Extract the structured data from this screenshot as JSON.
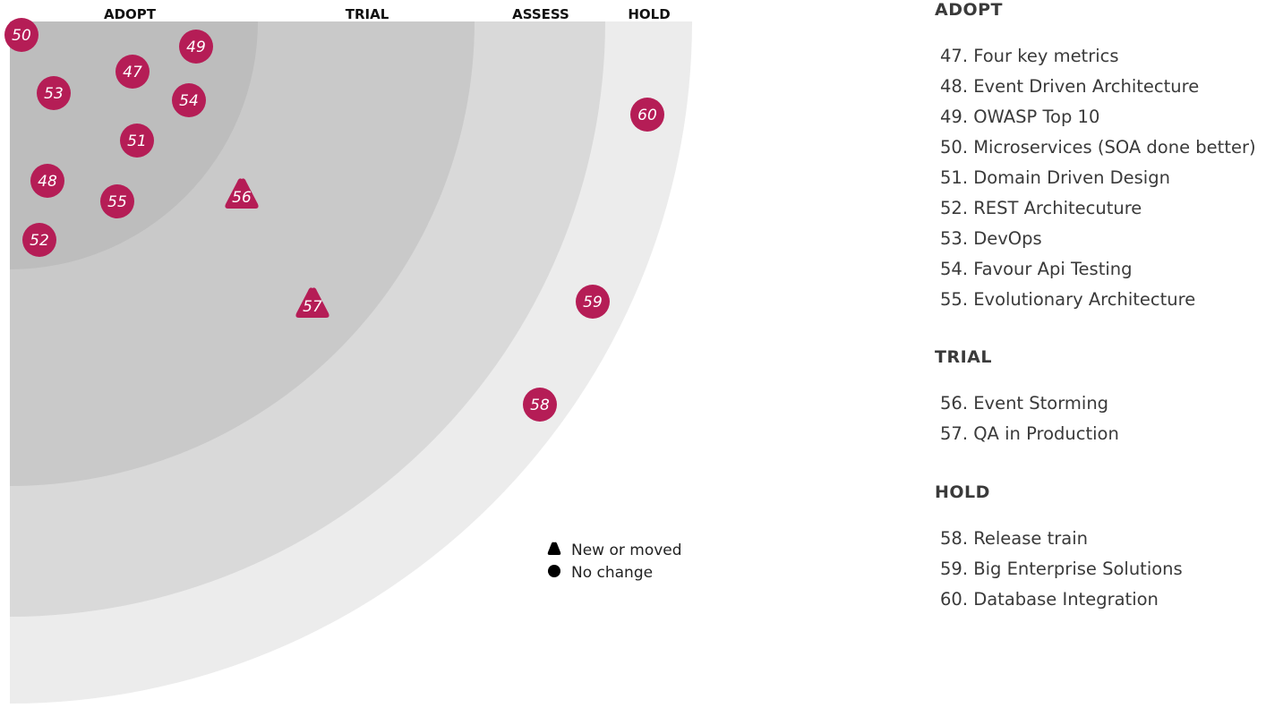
{
  "colors": {
    "blip": "#b51d56",
    "ring_adopt": "#bdbdbd",
    "ring_trial": "#c9c9c9",
    "ring_assess": "#d9d9d9",
    "ring_hold": "#ececec",
    "legend_marker": "#000000"
  },
  "radar": {
    "ring_labels": [
      "ADOPT",
      "TRIAL",
      "ASSESS",
      "HOLD"
    ],
    "legend": {
      "new_or_moved": "New or moved",
      "no_change": "No change",
      "new_icon": "triangle-icon",
      "no_change_icon": "circle-icon"
    },
    "blips": [
      {
        "id": "47",
        "shape": "circle"
      },
      {
        "id": "48",
        "shape": "circle"
      },
      {
        "id": "49",
        "shape": "circle"
      },
      {
        "id": "50",
        "shape": "circle"
      },
      {
        "id": "51",
        "shape": "circle"
      },
      {
        "id": "52",
        "shape": "circle"
      },
      {
        "id": "53",
        "shape": "circle"
      },
      {
        "id": "54",
        "shape": "circle"
      },
      {
        "id": "55",
        "shape": "circle"
      },
      {
        "id": "56",
        "shape": "triangle"
      },
      {
        "id": "57",
        "shape": "triangle"
      },
      {
        "id": "58",
        "shape": "circle"
      },
      {
        "id": "59",
        "shape": "circle"
      },
      {
        "id": "60",
        "shape": "circle"
      }
    ]
  },
  "sections": [
    {
      "title": "ADOPT",
      "items": [
        "47. Four key metrics",
        "48. Event Driven Architecture",
        "49. OWASP Top 10",
        "50. Microservices (SOA done better)",
        "51. Domain Driven Design",
        "52. REST Architecuture",
        "53. DevOps",
        "54. Favour Api Testing",
        "55. Evolutionary Architecture"
      ]
    },
    {
      "title": "TRIAL",
      "items": [
        "56. Event Storming",
        "57. QA in Production"
      ]
    },
    {
      "title": "HOLD",
      "items": [
        "58. Release train",
        "59. Big Enterprise Solutions",
        "60. Database Integration"
      ]
    }
  ]
}
